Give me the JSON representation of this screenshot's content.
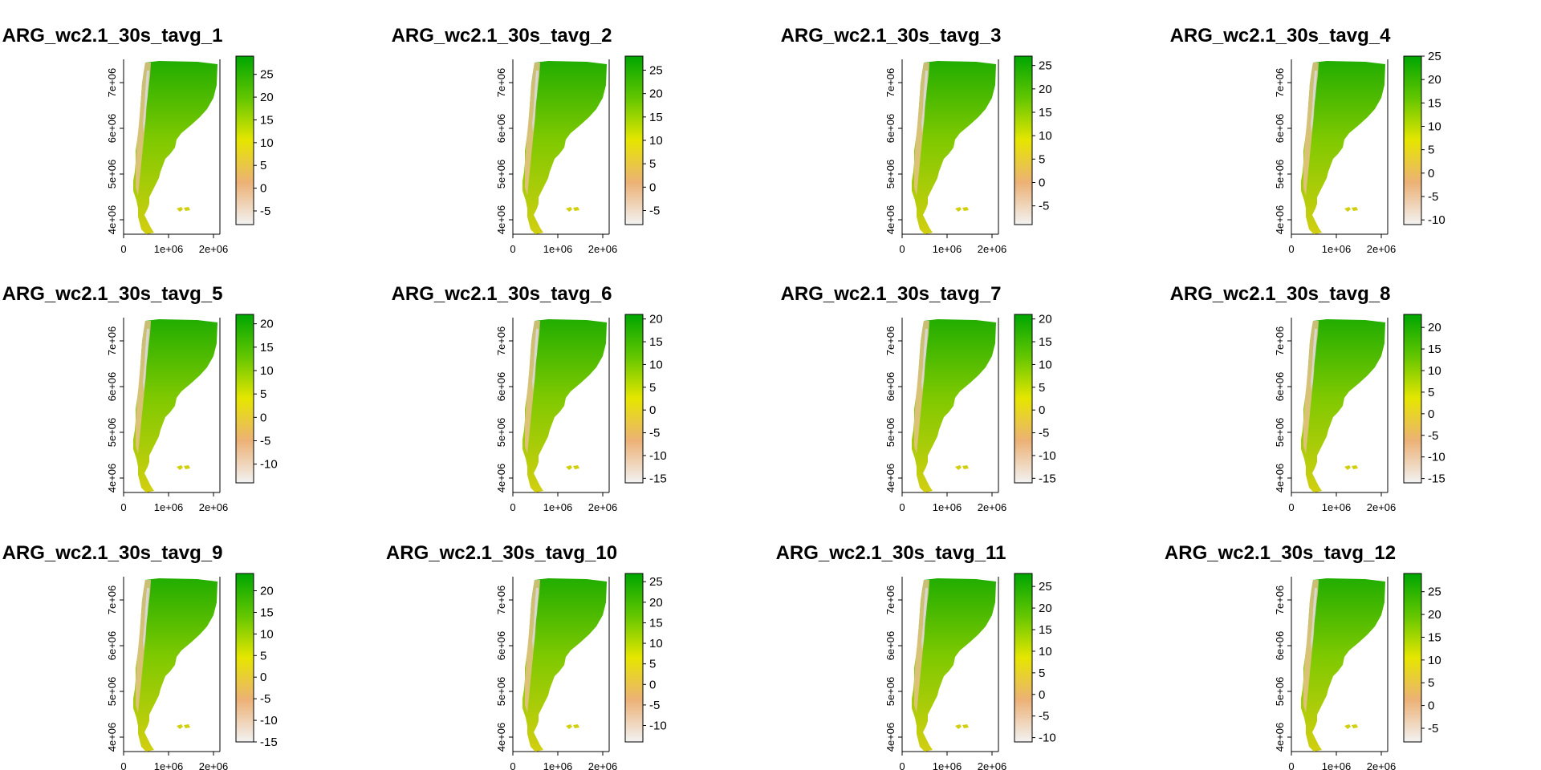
{
  "chart_data": [
    {
      "type": "heatmap",
      "title": "ARG_wc2.1_30s_tavg_1",
      "x_ticks": [
        "0",
        "1e+06",
        "2e+06"
      ],
      "y_ticks": [
        "4e+06",
        "5e+06",
        "6e+06",
        "7e+06"
      ],
      "legend_ticks": [
        25,
        20,
        15,
        10,
        5,
        0,
        -5
      ],
      "legend_range": [
        -8,
        29
      ]
    },
    {
      "type": "heatmap",
      "title": "ARG_wc2.1_30s_tavg_2",
      "x_ticks": [
        "0",
        "1e+06",
        "2e+06"
      ],
      "y_ticks": [
        "4e+06",
        "5e+06",
        "6e+06",
        "7e+06"
      ],
      "legend_ticks": [
        25,
        20,
        15,
        10,
        5,
        0,
        -5
      ],
      "legend_range": [
        -8,
        28
      ]
    },
    {
      "type": "heatmap",
      "title": "ARG_wc2.1_30s_tavg_3",
      "x_ticks": [
        "0",
        "1e+06",
        "2e+06"
      ],
      "y_ticks": [
        "4e+06",
        "5e+06",
        "6e+06",
        "7e+06"
      ],
      "legend_ticks": [
        25,
        20,
        15,
        10,
        5,
        0,
        -5
      ],
      "legend_range": [
        -9,
        27
      ]
    },
    {
      "type": "heatmap",
      "title": "ARG_wc2.1_30s_tavg_4",
      "x_ticks": [
        "0",
        "1e+06",
        "2e+06"
      ],
      "y_ticks": [
        "4e+06",
        "5e+06",
        "6e+06",
        "7e+06"
      ],
      "legend_ticks": [
        25,
        20,
        15,
        10,
        5,
        0,
        -5,
        -10
      ],
      "legend_range": [
        -11,
        25
      ]
    },
    {
      "type": "heatmap",
      "title": "ARG_wc2.1_30s_tavg_5",
      "x_ticks": [
        "0",
        "1e+06",
        "2e+06"
      ],
      "y_ticks": [
        "4e+06",
        "5e+06",
        "6e+06",
        "7e+06"
      ],
      "legend_ticks": [
        20,
        15,
        10,
        5,
        0,
        -5,
        -10
      ],
      "legend_range": [
        -14,
        22
      ]
    },
    {
      "type": "heatmap",
      "title": "ARG_wc2.1_30s_tavg_6",
      "x_ticks": [
        "0",
        "1e+06",
        "2e+06"
      ],
      "y_ticks": [
        "4e+06",
        "5e+06",
        "6e+06",
        "7e+06"
      ],
      "legend_ticks": [
        20,
        15,
        10,
        5,
        0,
        -5,
        -10,
        -15
      ],
      "legend_range": [
        -16,
        21
      ]
    },
    {
      "type": "heatmap",
      "title": "ARG_wc2.1_30s_tavg_7",
      "x_ticks": [
        "0",
        "1e+06",
        "2e+06"
      ],
      "y_ticks": [
        "4e+06",
        "5e+06",
        "6e+06",
        "7e+06"
      ],
      "legend_ticks": [
        20,
        15,
        10,
        5,
        0,
        -5,
        -10,
        -15
      ],
      "legend_range": [
        -16,
        21
      ]
    },
    {
      "type": "heatmap",
      "title": "ARG_wc2.1_30s_tavg_8",
      "x_ticks": [
        "0",
        "1e+06",
        "2e+06"
      ],
      "y_ticks": [
        "4e+06",
        "5e+06",
        "6e+06",
        "7e+06"
      ],
      "legend_ticks": [
        20,
        15,
        10,
        5,
        0,
        -5,
        -10,
        -15
      ],
      "legend_range": [
        -16,
        23
      ]
    },
    {
      "type": "heatmap",
      "title": "ARG_wc2.1_30s_tavg_9",
      "x_ticks": [
        "0",
        "1e+06",
        "2e+06"
      ],
      "y_ticks": [
        "4e+06",
        "5e+06",
        "6e+06",
        "7e+06"
      ],
      "legend_ticks": [
        20,
        15,
        10,
        5,
        0,
        -5,
        -10,
        -15
      ],
      "legend_range": [
        -15,
        24
      ]
    },
    {
      "type": "heatmap",
      "title": "ARG_wc2.1_30s_tavg_10",
      "x_ticks": [
        "0",
        "1e+06",
        "2e+06"
      ],
      "y_ticks": [
        "4e+06",
        "5e+06",
        "6e+06",
        "7e+06"
      ],
      "legend_ticks": [
        25,
        20,
        15,
        10,
        5,
        0,
        -5,
        -10
      ],
      "legend_range": [
        -14,
        27
      ]
    },
    {
      "type": "heatmap",
      "title": "ARG_wc2.1_30s_tavg_11",
      "x_ticks": [
        "0",
        "1e+06",
        "2e+06"
      ],
      "y_ticks": [
        "4e+06",
        "5e+06",
        "6e+06",
        "7e+06"
      ],
      "legend_ticks": [
        25,
        20,
        15,
        10,
        5,
        0,
        -5,
        -10
      ],
      "legend_range": [
        -11,
        28
      ]
    },
    {
      "type": "heatmap",
      "title": "ARG_wc2.1_30s_tavg_12",
      "x_ticks": [
        "0",
        "1e+06",
        "2e+06"
      ],
      "y_ticks": [
        "4e+06",
        "5e+06",
        "6e+06",
        "7e+06"
      ],
      "legend_ticks": [
        25,
        20,
        15,
        10,
        5,
        0,
        -5
      ],
      "legend_range": [
        -8,
        29
      ]
    }
  ],
  "colors": {
    "legend_stops": [
      "#f2f2f2",
      "#ecb176",
      "#e6e600",
      "#63c600",
      "#00a600"
    ],
    "map_north": "#22ad00",
    "map_mid": "#7ec900",
    "map_south": "#d2cf10",
    "map_andes": "#e8c18a",
    "map_andes_high": "#d9d9d9"
  }
}
